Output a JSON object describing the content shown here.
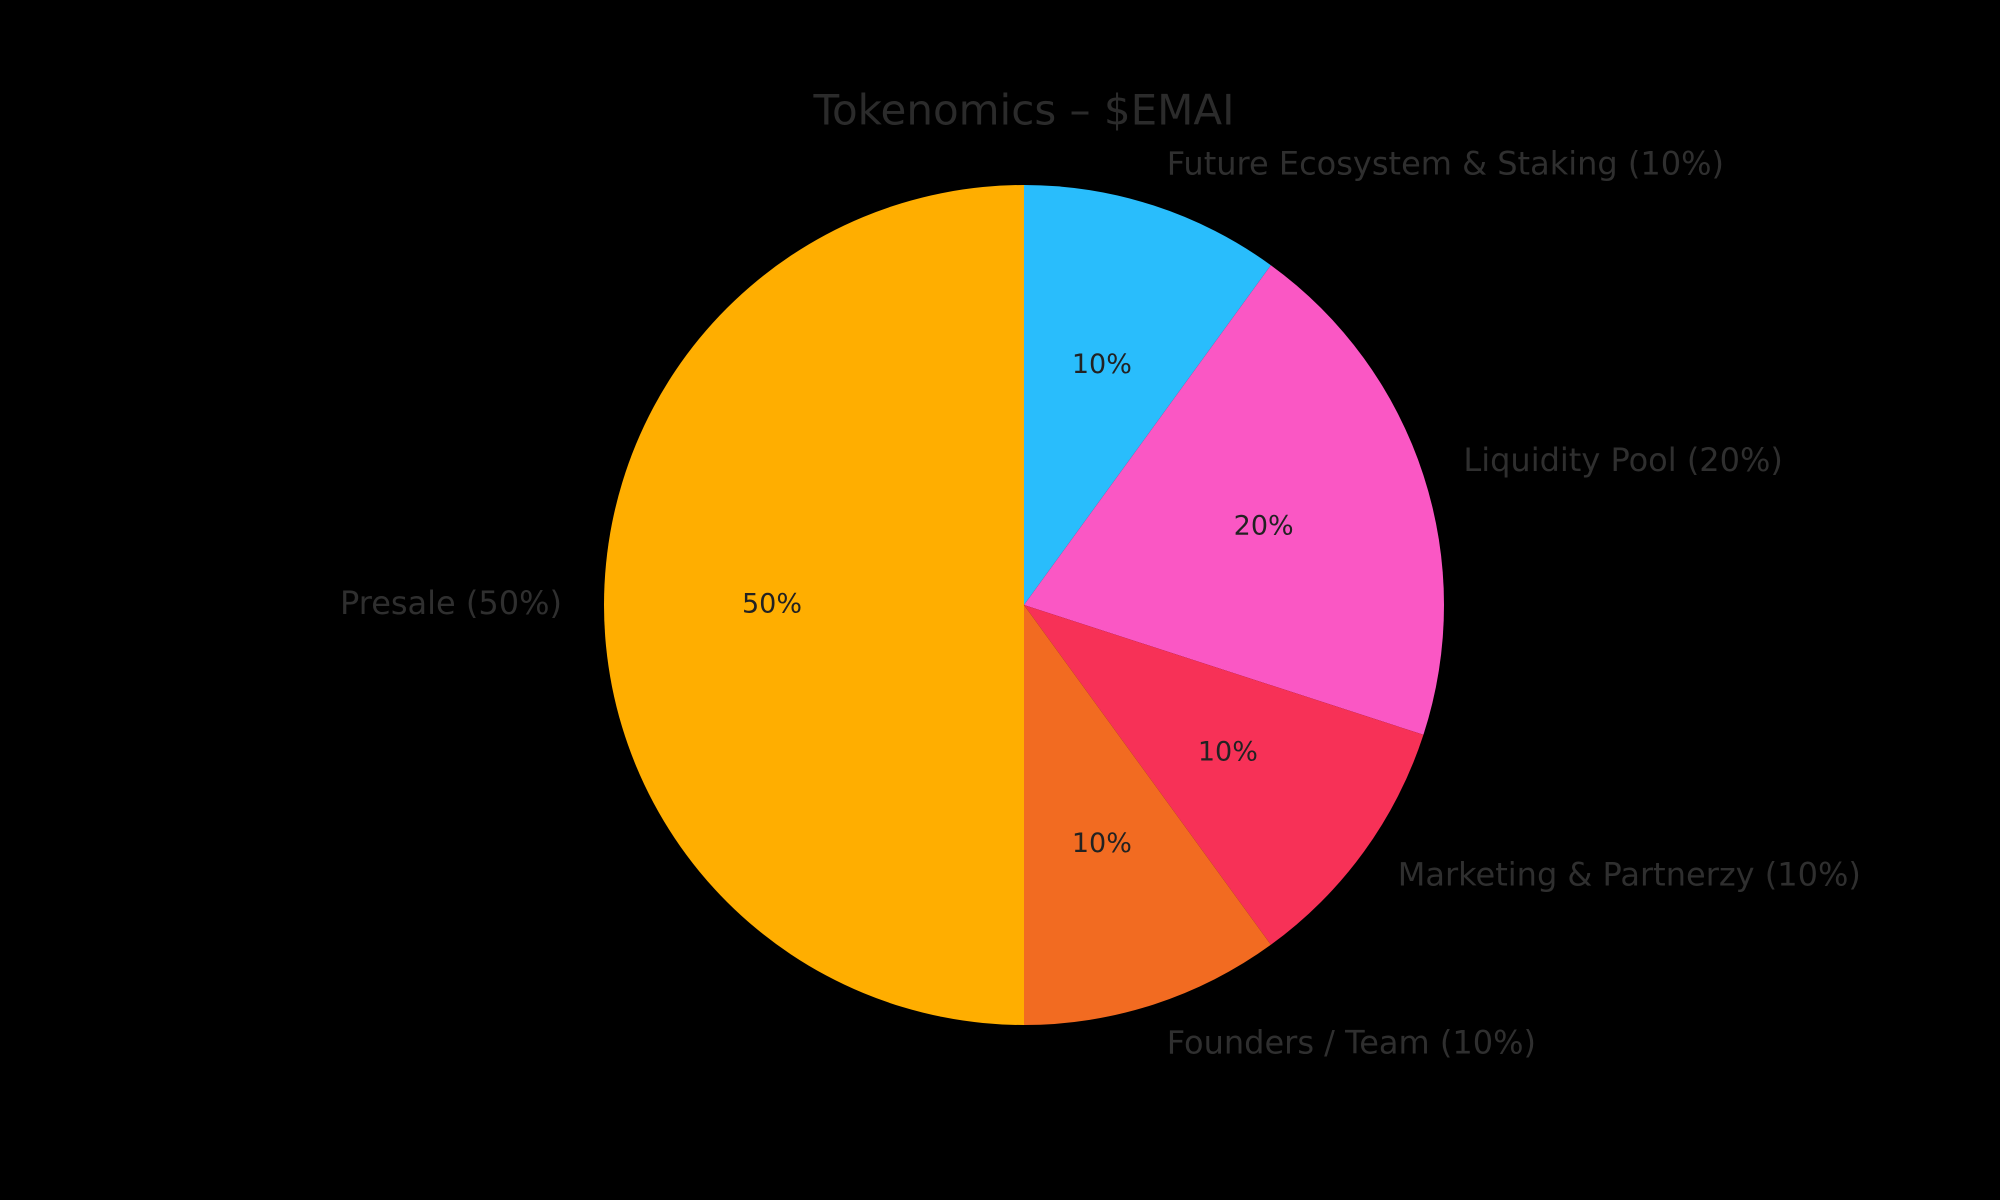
{
  "chart_data": {
    "type": "pie",
    "title": "Tokenomics – $EMAI",
    "start_angle_deg": 90,
    "direction": "clockwise",
    "slices": [
      {
        "label": "Future Ecosystem & Staking (10%)",
        "value": 10,
        "pct_label": "10%",
        "color": "#29bdfc"
      },
      {
        "label": "Liquidity Pool (20%)",
        "value": 20,
        "pct_label": "20%",
        "color": "#fa57c4"
      },
      {
        "label": "Marketing & Partnerzy (10%)",
        "value": 10,
        "pct_label": "10%",
        "color": "#f73157"
      },
      {
        "label": "Founders / Team (10%)",
        "value": 10,
        "pct_label": "10%",
        "color": "#f26b21"
      },
      {
        "label": "Presale (50%)",
        "value": 50,
        "pct_label": "50%",
        "color": "#ffae00"
      }
    ],
    "colors": {
      "background": "#000000",
      "title_text": "#2b2b2b",
      "outer_label_text": "#2f2f2f",
      "pct_label_text": "#222222"
    }
  }
}
